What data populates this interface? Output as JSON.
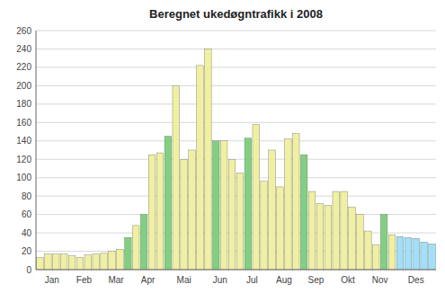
{
  "chart_data": {
    "type": "bar",
    "title": "Beregnet ukedøgntrafikk i 2008",
    "categories": [
      "Jan",
      null,
      null,
      null,
      "Feb",
      null,
      null,
      null,
      "Mar",
      null,
      null,
      null,
      "Apr",
      null,
      null,
      null,
      "Mai",
      null,
      null,
      null,
      null,
      "Jun",
      null,
      null,
      null,
      "Jul",
      null,
      null,
      null,
      "Aug",
      null,
      null,
      null,
      "Sep",
      null,
      null,
      null,
      "Okt",
      null,
      null,
      null,
      "Nov",
      null,
      null,
      null,
      "Des",
      null,
      null,
      null,
      null
    ],
    "values": [
      13,
      17,
      17,
      17,
      15,
      13,
      16,
      17,
      18,
      20,
      22,
      35,
      48,
      60,
      125,
      127,
      145,
      200,
      120,
      130,
      222,
      240,
      140,
      140,
      120,
      105,
      143,
      158,
      96,
      130,
      90,
      142,
      148,
      125,
      85,
      72,
      70,
      85,
      85,
      68,
      60,
      42,
      27,
      60,
      38,
      36,
      35,
      34,
      30,
      28
    ],
    "colors": [
      "#f0f0a0",
      "#f0f0a0",
      "#f0f0a0",
      "#f0f0a0",
      "#f0f0a0",
      "#f0f0a0",
      "#f0f0a0",
      "#f0f0a0",
      "#f0f0a0",
      "#f0f0a0",
      "#f0f0a0",
      "#80d080",
      "#f0f0a0",
      "#80d080",
      "#f0f0a0",
      "#f0f0a0",
      "#80d080",
      "#f0f0a0",
      "#f0f0a0",
      "#f0f0a0",
      "#f0f0a0",
      "#f0f0a0",
      "#80d080",
      "#f0f0a0",
      "#f0f0a0",
      "#f0f0a0",
      "#80d080",
      "#f0f0a0",
      "#f0f0a0",
      "#f0f0a0",
      "#f0f0a0",
      "#f0f0a0",
      "#f0f0a0",
      "#80d080",
      "#f0f0a0",
      "#f0f0a0",
      "#f0f0a0",
      "#f0f0a0",
      "#f0f0a0",
      "#f0f0a0",
      "#f0f0a0",
      "#f0f0a0",
      "#f0f0a0",
      "#80d080",
      "#f0f0a0",
      "#a0e0f8",
      "#a0e0f8",
      "#a0e0f8",
      "#a0e0f8",
      "#a0e0f8"
    ],
    "ylim": [
      0,
      260
    ],
    "yticks": [
      0,
      20,
      40,
      60,
      80,
      100,
      120,
      140,
      160,
      180,
      200,
      220,
      240,
      260
    ],
    "grid": true
  }
}
